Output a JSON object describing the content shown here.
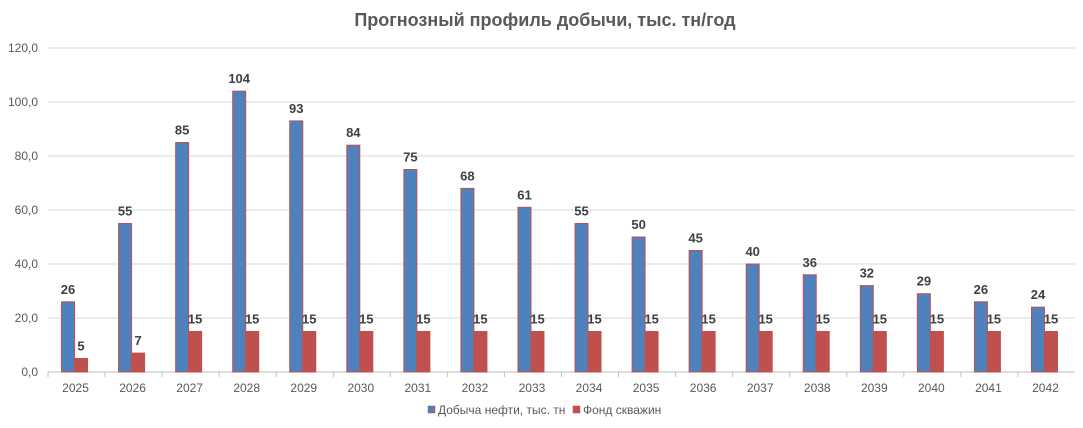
{
  "chart_data": {
    "type": "bar",
    "title": "Прогнозный профиль добычи, тыс. тн/год",
    "xlabel": "",
    "ylabel": "",
    "ylim": [
      0,
      120
    ],
    "y_ticks": [
      "0,0",
      "20,0",
      "40,0",
      "60,0",
      "80,0",
      "100,0",
      "120,0"
    ],
    "grid": true,
    "legend_position": "bottom",
    "categories": [
      "2025",
      "2026",
      "2027",
      "2028",
      "2029",
      "2030",
      "2031",
      "2032",
      "2033",
      "2034",
      "2035",
      "2036",
      "2037",
      "2038",
      "2039",
      "2040",
      "2041",
      "2042"
    ],
    "series": [
      {
        "name": "Добыча нефти, тыс. тн",
        "color": "#4F81BD",
        "border_color": "#C0504D",
        "values": [
          26,
          55,
          85,
          104,
          93,
          84,
          75,
          68,
          61,
          55,
          50,
          45,
          40,
          36,
          32,
          29,
          26,
          24
        ]
      },
      {
        "name": "Фонд скважин",
        "color": "#C0504D",
        "border_color": "#C0504D",
        "values": [
          5,
          7,
          15,
          15,
          15,
          15,
          15,
          15,
          15,
          15,
          15,
          15,
          15,
          15,
          15,
          15,
          15,
          15
        ]
      }
    ]
  }
}
